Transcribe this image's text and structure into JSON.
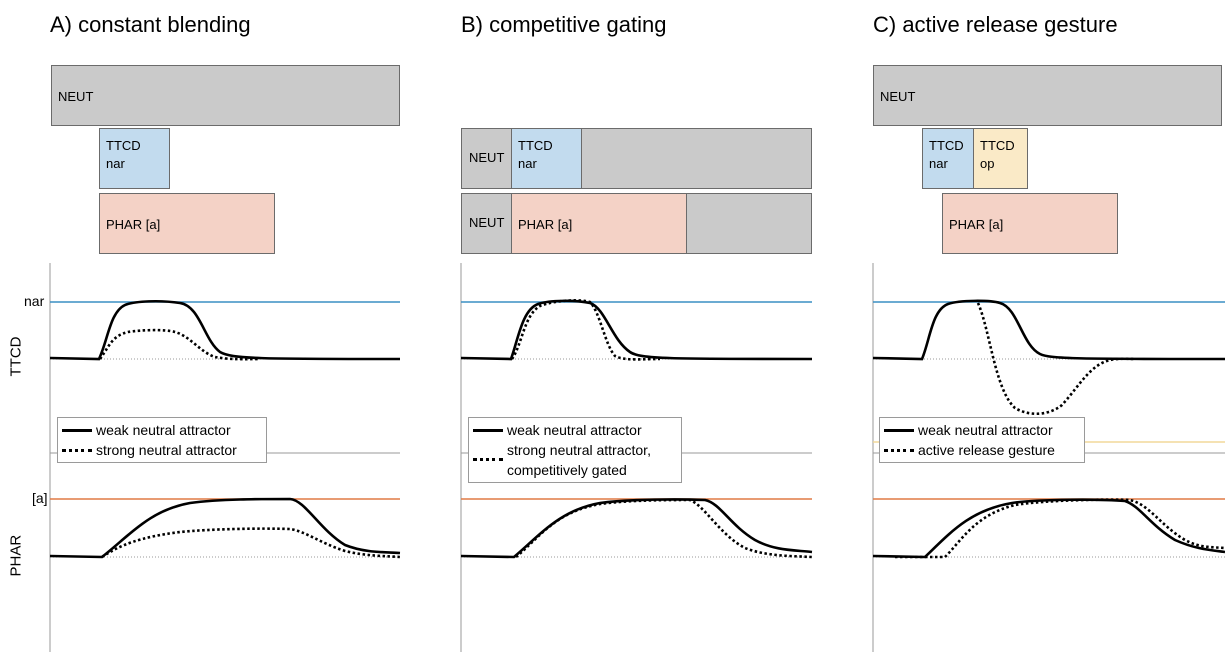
{
  "panels": {
    "a": {
      "title": "A) constant blending",
      "boxes": {
        "neut": "NEUT",
        "ttcd_line1": "TTCD",
        "ttcd_line2": "nar",
        "phar": "PHAR [a]"
      },
      "legend_ttcd": [
        "weak neutral attractor",
        "strong neutral attractor"
      ]
    },
    "b": {
      "title": "B) competitive gating",
      "boxes": {
        "neut1": "NEUT",
        "ttcd_line1": "TTCD",
        "ttcd_line2": "nar",
        "neut2": "NEUT",
        "phar": "PHAR [a]"
      },
      "legend_ttcd": [
        "weak neutral attractor",
        "strong neutral attractor, competitively gated"
      ]
    },
    "c": {
      "title": "C) active release gesture",
      "boxes": {
        "neut": "NEUT",
        "ttcd_nar_line1": "TTCD",
        "ttcd_nar_line2": "nar",
        "ttcd_op_line1": "TTCD",
        "ttcd_op_line2": "op",
        "phar": "PHAR [a]"
      },
      "legend_ttcd": [
        "weak neutral attractor",
        "active release gesture"
      ]
    }
  },
  "rows": {
    "ttcd": {
      "label": "TTCD",
      "target_label": "nar"
    },
    "phar": {
      "label": "PHAR",
      "target_label": "[a]"
    }
  },
  "colors": {
    "ttcd_target": "#3a8fc4",
    "phar_target": "#e07a45",
    "op_target": "#f2d89a",
    "box_gray": "#cacaca",
    "box_blue": "#c2dbee",
    "box_salmon": "#f4d2c6",
    "box_yellow": "#faeac7"
  }
}
